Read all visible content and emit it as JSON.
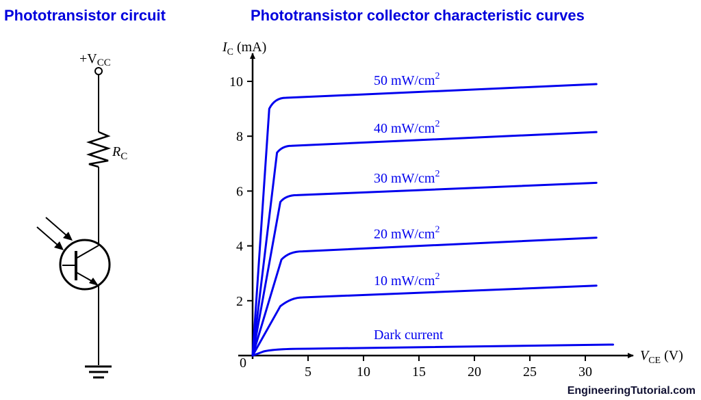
{
  "titles": {
    "left": "Phototransistor circuit",
    "right": "Phototransistor collector characteristic curves"
  },
  "circuit": {
    "supply_label": "+V",
    "supply_sub": "CC",
    "resistor_label": "R",
    "resistor_sub": "C",
    "components": [
      "supply-terminal",
      "resistor",
      "phototransistor",
      "ground"
    ]
  },
  "axes": {
    "y_label": "I",
    "y_label_sub": "C",
    "y_unit": "(mA)",
    "x_label": "V",
    "x_label_sub": "CE",
    "x_unit": "(V)",
    "origin_label": "0"
  },
  "watermark": "EngineeringTutorial.com",
  "colors": {
    "title": "#0000dd",
    "curve": "#0000ee",
    "axis": "#000000"
  },
  "chart_data": {
    "type": "line",
    "title": "Phototransistor collector characteristic curves",
    "xlabel": "V_CE (V)",
    "ylabel": "I_C (mA)",
    "xlim": [
      0,
      33
    ],
    "ylim": [
      0,
      10.5
    ],
    "x_ticks": [
      5,
      10,
      15,
      20,
      25,
      30
    ],
    "y_ticks": [
      2,
      4,
      6,
      8,
      10
    ],
    "grid": false,
    "legend": "inline labels above curves",
    "series": [
      {
        "name": "50 mW/cm2",
        "label_main": "50 mW/cm",
        "knee_v": 1.8,
        "x": [
          0,
          1.5,
          2,
          3,
          31
        ],
        "values": [
          0,
          9.0,
          9.3,
          9.4,
          9.9
        ]
      },
      {
        "name": "40 mW/cm2",
        "label_main": "40 mW/cm",
        "knee_v": 2.2,
        "x": [
          0,
          2.2,
          2.7,
          3.5,
          31
        ],
        "values": [
          0,
          7.4,
          7.6,
          7.65,
          8.15
        ]
      },
      {
        "name": "30 mW/cm2",
        "label_main": "30 mW/cm",
        "knee_v": 2.6,
        "x": [
          0,
          2.5,
          3.0,
          4.0,
          31
        ],
        "values": [
          0,
          5.6,
          5.8,
          5.85,
          6.3
        ]
      },
      {
        "name": "20 mW/cm2",
        "label_main": "20 mW/cm",
        "knee_v": 2.8,
        "x": [
          0,
          2.6,
          3.3,
          4.5,
          31
        ],
        "values": [
          0,
          3.5,
          3.75,
          3.8,
          4.3
        ]
      },
      {
        "name": "10 mW/cm2",
        "label_main": "10 mW/cm",
        "knee_v": 3.0,
        "x": [
          0,
          2.5,
          3.5,
          4.5,
          31
        ],
        "values": [
          0,
          1.8,
          2.1,
          2.12,
          2.55
        ]
      },
      {
        "name": "Dark current",
        "label_main": "Dark current",
        "knee_v": 1.5,
        "x": [
          0,
          1,
          2,
          5,
          32.5
        ],
        "values": [
          0,
          0.15,
          0.22,
          0.25,
          0.4
        ]
      }
    ]
  }
}
